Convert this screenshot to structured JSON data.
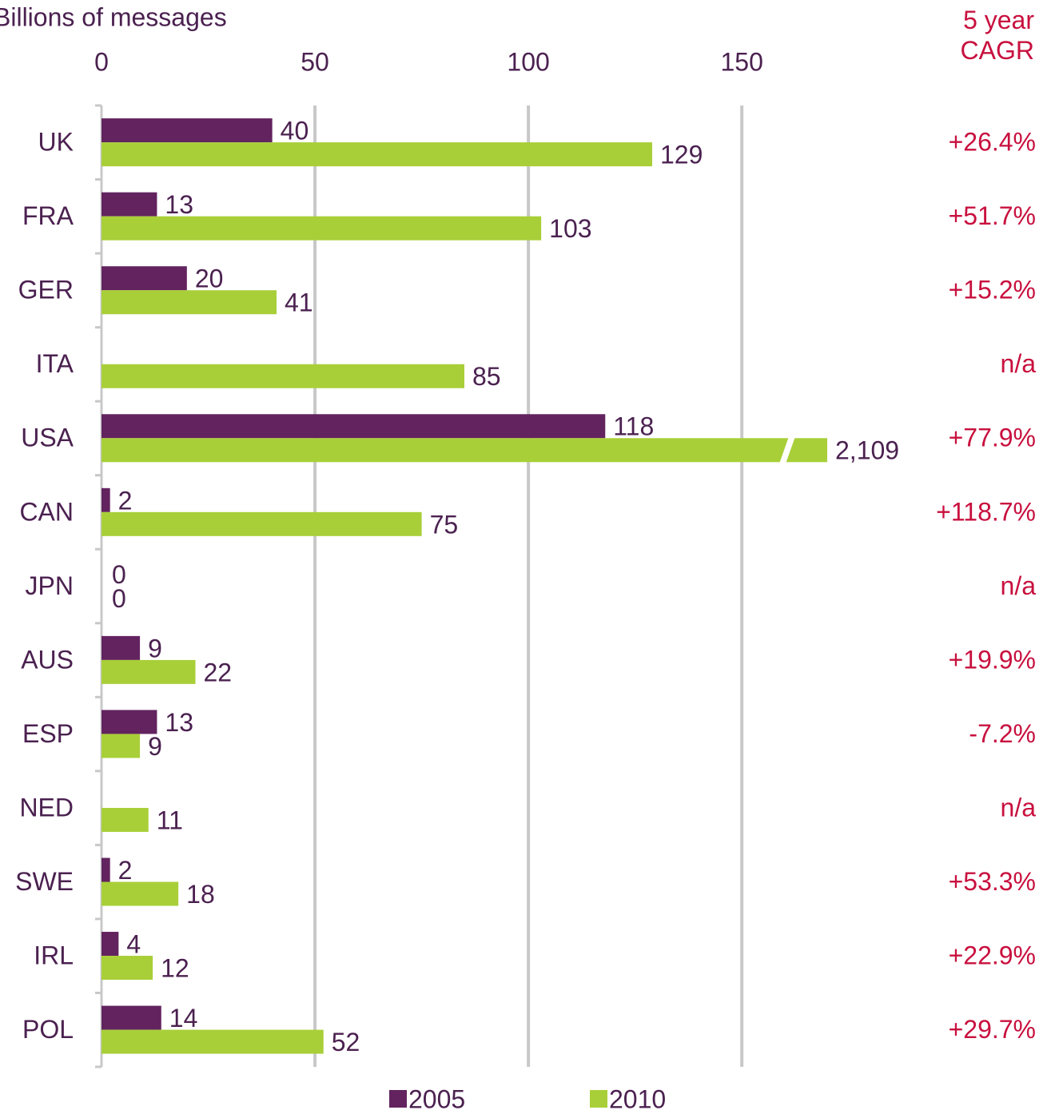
{
  "chart_data": {
    "type": "hbar",
    "x_axis_label": "Billions of messages",
    "categories": [
      "UK",
      "FRA",
      "GER",
      "ITA",
      "USA",
      "CAN",
      "JPN",
      "AUS",
      "ESP",
      "NED",
      "SWE",
      "IRL",
      "POL"
    ],
    "series": [
      {
        "name": "2005",
        "color": "#62235f",
        "values": [
          40,
          13,
          20,
          null,
          118,
          2,
          0,
          9,
          13,
          null,
          2,
          4,
          14
        ]
      },
      {
        "name": "2010",
        "color": "#a8cf38",
        "values": [
          129,
          103,
          41,
          85,
          2109,
          75,
          0,
          22,
          9,
          11,
          18,
          12,
          52
        ],
        "value_labels": [
          "129",
          "103",
          "41",
          "85",
          "2,109",
          "75",
          "0",
          "22",
          "9",
          "11",
          "18",
          "12",
          "52"
        ]
      }
    ],
    "cagr_title": "5 year CAGR",
    "cagr": [
      "+26.4%",
      "+51.7%",
      "+15.2%",
      "n/a",
      "+77.9%",
      "+118.7%",
      "n/a",
      "+19.9%",
      "-7.2%",
      "n/a",
      "+53.3%",
      "+22.9%",
      "+29.7%"
    ],
    "xlim": [
      0,
      170
    ],
    "xticks": [
      0,
      50,
      100,
      150
    ],
    "grid": true,
    "axis_break": true,
    "legend": "bottom"
  }
}
